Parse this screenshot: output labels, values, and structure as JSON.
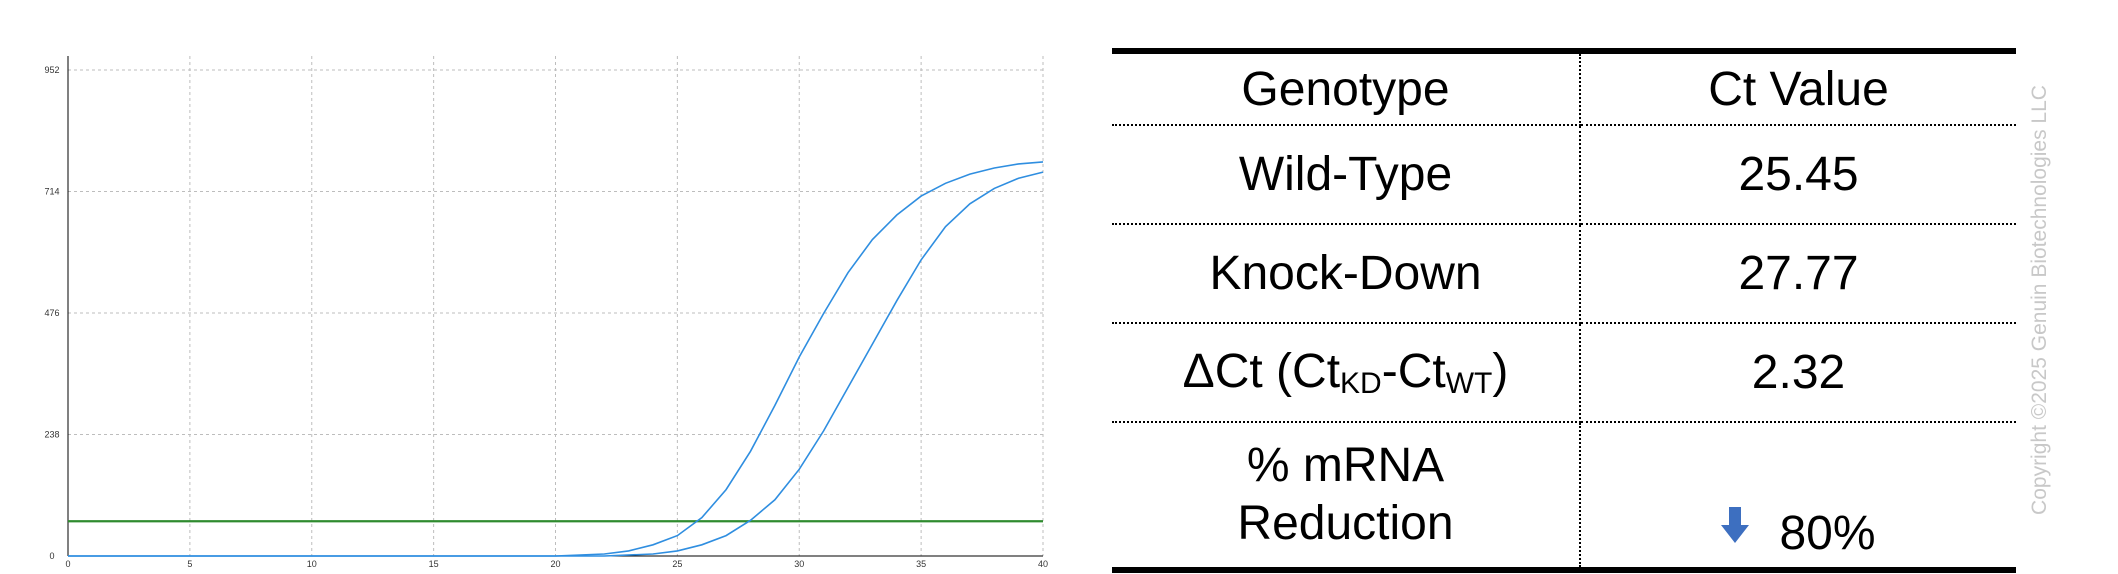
{
  "chart_data": {
    "type": "line",
    "title": "",
    "xlabel": "",
    "ylabel": "",
    "xlim": [
      0,
      40
    ],
    "ylim": [
      0,
      952
    ],
    "x_ticks": [
      0,
      5,
      10,
      15,
      20,
      25,
      30,
      35,
      40
    ],
    "y_ticks": [
      0,
      238,
      476,
      714,
      952
    ],
    "grid": true,
    "threshold": 68,
    "colors": {
      "curve": "#2f8ee0",
      "threshold": "#2f8b2f",
      "grid": "#bdbdbd",
      "axis": "#000000"
    },
    "series": [
      {
        "x": [
          0,
          20,
          22,
          23,
          24,
          25,
          26,
          27,
          28,
          29,
          30,
          31,
          32,
          33,
          34,
          35,
          36,
          37,
          38,
          39,
          40
        ],
        "y": [
          0,
          0,
          4,
          10,
          22,
          40,
          75,
          130,
          205,
          295,
          390,
          475,
          555,
          620,
          668,
          705,
          730,
          748,
          760,
          768,
          772
        ]
      },
      {
        "x": [
          0,
          22,
          24,
          25,
          26,
          27,
          28,
          29,
          30,
          31,
          32,
          33,
          34,
          35,
          36,
          37,
          38,
          39,
          40
        ],
        "y": [
          0,
          0,
          4,
          10,
          22,
          40,
          70,
          110,
          170,
          245,
          330,
          415,
          500,
          580,
          645,
          690,
          720,
          740,
          752
        ]
      }
    ]
  },
  "table": {
    "headers": [
      "Genotype",
      "Ct Value"
    ],
    "rows": [
      {
        "genotype": "Wild-Type",
        "ct": "25.45"
      },
      {
        "genotype": "Knock-Down",
        "ct": "27.77"
      }
    ],
    "delta": {
      "prefix": "ΔCt (Ct",
      "sub1": "KD",
      "middle": "-Ct",
      "sub2": "WT",
      "suffix": ")",
      "value": "2.32"
    },
    "reduction": {
      "line1": "% mRNA",
      "line2": "Reduction",
      "value": "80%",
      "arrow_icon": "down-arrow-icon",
      "arrow_color": "#3d6fc0"
    }
  },
  "copyright": "Copyright ©2025 Genuin Biotechnologies LLC"
}
